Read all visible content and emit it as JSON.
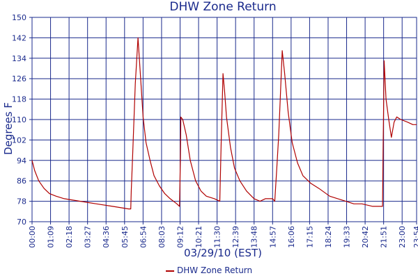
{
  "chart_data": {
    "type": "line",
    "title": "DHW Zone Return",
    "xlabel": "03/29/10 (EST)",
    "ylabel": "Degrees F",
    "ylim": [
      70,
      150
    ],
    "yticks": [
      70,
      78,
      86,
      94,
      102,
      110,
      118,
      126,
      134,
      142,
      150
    ],
    "xticks": [
      "00:00",
      "01:09",
      "02:18",
      "03:27",
      "04:36",
      "05:45",
      "06:54",
      "08:03",
      "09:12",
      "10:21",
      "11:30",
      "12:39",
      "13:48",
      "14:57",
      "16:06",
      "17:15",
      "18:24",
      "19:33",
      "20:42",
      "21:51",
      "23:00",
      "23:54"
    ],
    "grid": true,
    "legend_position": "bottom",
    "series": [
      {
        "name": "DHW Zone Return",
        "color": "#b00000",
        "points": [
          [
            "00:00",
            94
          ],
          [
            "00:10",
            90
          ],
          [
            "00:25",
            86
          ],
          [
            "00:45",
            83
          ],
          [
            "01:05",
            81
          ],
          [
            "01:30",
            80
          ],
          [
            "02:00",
            79
          ],
          [
            "03:00",
            78
          ],
          [
            "04:00",
            77
          ],
          [
            "05:00",
            76
          ],
          [
            "06:00",
            75
          ],
          [
            "06:08",
            75
          ],
          [
            "06:10",
            82
          ],
          [
            "06:15",
            96
          ],
          [
            "06:25",
            124
          ],
          [
            "06:35",
            142
          ],
          [
            "06:45",
            126
          ],
          [
            "06:54",
            111
          ],
          [
            "07:05",
            101
          ],
          [
            "07:20",
            94
          ],
          [
            "07:35",
            88
          ],
          [
            "07:55",
            84
          ],
          [
            "08:15",
            81
          ],
          [
            "08:35",
            79
          ],
          [
            "09:00",
            77
          ],
          [
            "09:10",
            76
          ],
          [
            "09:13",
            94
          ],
          [
            "09:15",
            111
          ],
          [
            "09:22",
            110
          ],
          [
            "09:35",
            104
          ],
          [
            "09:50",
            94
          ],
          [
            "10:10",
            86
          ],
          [
            "10:30",
            82
          ],
          [
            "10:50",
            80
          ],
          [
            "11:20",
            79
          ],
          [
            "11:40",
            78
          ],
          [
            "11:45",
            100
          ],
          [
            "11:52",
            128
          ],
          [
            "11:58",
            121
          ],
          [
            "12:05",
            111
          ],
          [
            "12:20",
            99
          ],
          [
            "12:35",
            91
          ],
          [
            "12:55",
            86
          ],
          [
            "13:20",
            82
          ],
          [
            "13:48",
            79
          ],
          [
            "14:10",
            78
          ],
          [
            "14:30",
            79
          ],
          [
            "14:57",
            79
          ],
          [
            "15:05",
            78
          ],
          [
            "15:12",
            90
          ],
          [
            "15:20",
            104
          ],
          [
            "15:25",
            117
          ],
          [
            "15:33",
            137
          ],
          [
            "15:42",
            128
          ],
          [
            "15:55",
            113
          ],
          [
            "16:10",
            101
          ],
          [
            "16:30",
            93
          ],
          [
            "16:50",
            88
          ],
          [
            "17:20",
            85
          ],
          [
            "17:50",
            83
          ],
          [
            "18:30",
            80
          ],
          [
            "19:00",
            79
          ],
          [
            "19:30",
            78
          ],
          [
            "20:00",
            77
          ],
          [
            "20:30",
            77
          ],
          [
            "21:10",
            76
          ],
          [
            "21:47",
            76
          ],
          [
            "21:49",
            98
          ],
          [
            "21:53",
            133
          ],
          [
            "22:00",
            118
          ],
          [
            "22:10",
            110
          ],
          [
            "22:20",
            103
          ],
          [
            "22:30",
            109
          ],
          [
            "22:40",
            111
          ],
          [
            "22:55",
            110
          ],
          [
            "23:20",
            109
          ],
          [
            "23:40",
            108
          ],
          [
            "23:54",
            108
          ]
        ]
      }
    ]
  },
  "legend": {
    "label": "DHW Zone Return"
  }
}
